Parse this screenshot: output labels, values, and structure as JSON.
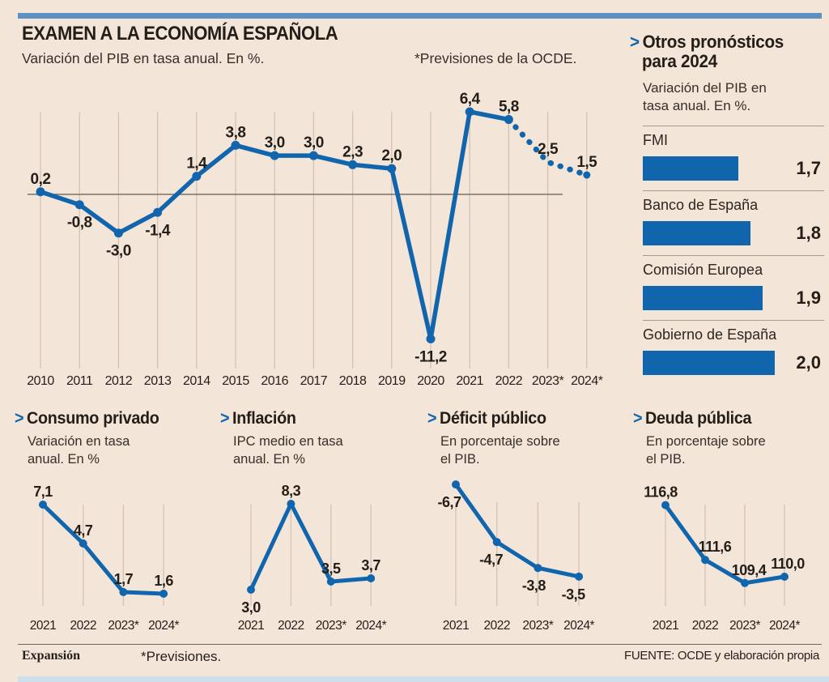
{
  "ui": {
    "chevron": ">"
  },
  "colors": {
    "background": "#f4e5d9",
    "accent_blue": "#1065ad",
    "top_bar_blue": "#5f90c2",
    "bottom_bar_blue": "#cfdfea",
    "grid_line": "#d2c3b6",
    "zero_line": "#6f675e",
    "text_dark": "#241e18"
  },
  "footer": {
    "brand": "Expansión",
    "note": "*Previsiones.",
    "source": "FUENTE: OCDE y elaboración propia"
  },
  "chart_data": [
    {
      "id": "pib",
      "type": "line",
      "title": "EXAMEN A LA ECONOMÍA ESPAÑOLA",
      "subtitle": "Variación del PIB en tasa anual. En %.",
      "note": "*Previsiones de la OCDE.",
      "categories": [
        "2010",
        "2011",
        "2012",
        "2013",
        "2014",
        "2015",
        "2016",
        "2017",
        "2018",
        "2019",
        "2020",
        "2021",
        "2022",
        "2023*",
        "2024*"
      ],
      "values": [
        0.2,
        -0.8,
        -3.0,
        -1.4,
        1.4,
        3.8,
        3.0,
        3.0,
        2.3,
        2.0,
        -11.2,
        6.4,
        5.8,
        2.5,
        1.5
      ],
      "labels": [
        "0,2",
        "-0,8",
        "-3,0",
        "-1,4",
        "1,4",
        "3,8",
        "3,0",
        "3,0",
        "2,3",
        "2,0",
        "-11,2",
        "6,4",
        "5,8",
        "2,5",
        "1,5"
      ],
      "dashed_from_index": 12,
      "ylim": [
        -13.5,
        6.4
      ],
      "zero_line": true,
      "grid": "vertical"
    },
    {
      "id": "consumo",
      "type": "line",
      "title": "Consumo privado",
      "subtitle1": "Variación en tasa",
      "subtitle2": "anual. En %",
      "categories": [
        "2021",
        "2022",
        "2023*",
        "2024*"
      ],
      "values": [
        7.1,
        4.7,
        1.7,
        1.6
      ],
      "labels": [
        "7,1",
        "4,7",
        "1,7",
        "1,6"
      ],
      "label_sides": [
        "above",
        "above",
        "above",
        "above"
      ],
      "ylim": [
        0,
        8
      ],
      "grid": "vertical"
    },
    {
      "id": "inflacion",
      "type": "line",
      "title": "Inflación",
      "subtitle1": "IPC medio en tasa",
      "subtitle2": "anual. En %",
      "categories": [
        "2021",
        "2022",
        "2023*",
        "2024*"
      ],
      "values": [
        3.0,
        8.3,
        3.5,
        3.7
      ],
      "labels": [
        "3,0",
        "8,3",
        "3,5",
        "3,7"
      ],
      "label_sides": [
        "below",
        "above",
        "above",
        "above"
      ],
      "ylim": [
        2,
        9
      ],
      "grid": "vertical"
    },
    {
      "id": "deficit",
      "type": "line",
      "title": "Déficit público",
      "subtitle1": "En porcentaje sobre",
      "subtitle2": "el PIB.",
      "categories": [
        "2021",
        "2022",
        "2023*",
        "2024*"
      ],
      "values": [
        -6.7,
        -4.7,
        -3.8,
        -3.5
      ],
      "labels": [
        "-6,7",
        "-4,7",
        "-3,8",
        "-3,5"
      ],
      "label_sides": [
        "below",
        "below",
        "below",
        "below"
      ],
      "label_dx": [
        -8,
        -7,
        -5,
        -7
      ],
      "ylim": [
        -6.9,
        -3.3
      ],
      "invert": true,
      "grid": "vertical"
    },
    {
      "id": "deuda",
      "type": "line",
      "title": "Deuda pública",
      "subtitle1": "En porcentaje sobre",
      "subtitle2": "el PIB.",
      "categories": [
        "2021",
        "2022",
        "2023*",
        "2024*"
      ],
      "values": [
        116.8,
        111.6,
        109.4,
        110.0
      ],
      "labels": [
        "116,8",
        "111,6",
        "109,4",
        "110,0"
      ],
      "label_sides": [
        "above",
        "above",
        "above",
        "above"
      ],
      "label_dx": [
        -6,
        12,
        5,
        4
      ],
      "ylim": [
        108,
        118
      ],
      "grid": "vertical"
    },
    {
      "id": "pronosticos",
      "type": "bar",
      "title_line1": "Otros pronósticos",
      "title_line2": "para 2024",
      "subtitle1": "Variación del PIB en",
      "subtitle2": "tasa anual. En %.",
      "categories": [
        "FMI",
        "Banco de España",
        "Comisión Europea",
        "Gobierno de España"
      ],
      "values": [
        1.7,
        1.8,
        1.9,
        2.0
      ],
      "labels": [
        "1,7",
        "1,8",
        "1,9",
        "2,0"
      ],
      "legend_position": "none"
    }
  ]
}
